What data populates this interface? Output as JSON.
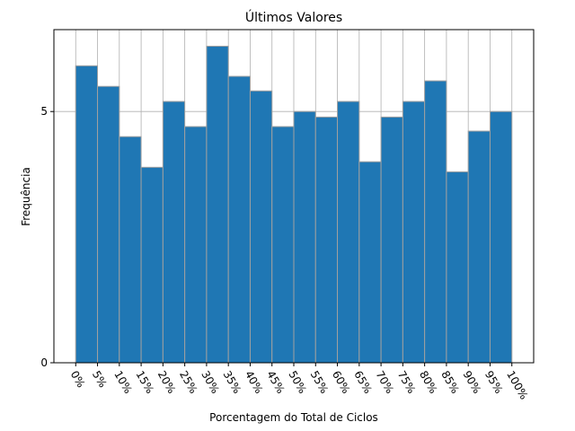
{
  "chart_data": {
    "type": "histogram",
    "title": "Últimos Valores",
    "xlabel": "Porcentagem do Total de Ciclos",
    "ylabel": "Frequência",
    "bins": [
      0,
      5,
      10,
      15,
      20,
      25,
      30,
      35,
      40,
      45,
      50,
      55,
      60,
      65,
      70,
      75,
      80,
      85,
      90,
      95,
      100
    ],
    "values": [
      5.91,
      5.5,
      4.5,
      3.89,
      5.2,
      4.7,
      6.3,
      5.7,
      5.41,
      4.7,
      5.0,
      4.89,
      5.2,
      4.0,
      4.89,
      5.2,
      5.61,
      3.8,
      4.61,
      5.0
    ],
    "color": "#1f77b4",
    "grid": true,
    "xlim": [
      -5,
      105
    ],
    "ylim": [
      0,
      6.63
    ],
    "xticks": [
      {
        "value": 0,
        "label": "0%"
      },
      {
        "value": 5,
        "label": "5%"
      },
      {
        "value": 10,
        "label": "10%"
      },
      {
        "value": 15,
        "label": "15%"
      },
      {
        "value": 20,
        "label": "20%"
      },
      {
        "value": 25,
        "label": "25%"
      },
      {
        "value": 30,
        "label": "30%"
      },
      {
        "value": 35,
        "label": "35%"
      },
      {
        "value": 40,
        "label": "40%"
      },
      {
        "value": 45,
        "label": "45%"
      },
      {
        "value": 50,
        "label": "50%"
      },
      {
        "value": 55,
        "label": "55%"
      },
      {
        "value": 60,
        "label": "60%"
      },
      {
        "value": 65,
        "label": "65%"
      },
      {
        "value": 70,
        "label": "70%"
      },
      {
        "value": 75,
        "label": "75%"
      },
      {
        "value": 80,
        "label": "80%"
      },
      {
        "value": 85,
        "label": "85%"
      },
      {
        "value": 90,
        "label": "90%"
      },
      {
        "value": 95,
        "label": "95%"
      },
      {
        "value": 100,
        "label": "100%"
      }
    ],
    "yticks": [
      0,
      5
    ]
  }
}
